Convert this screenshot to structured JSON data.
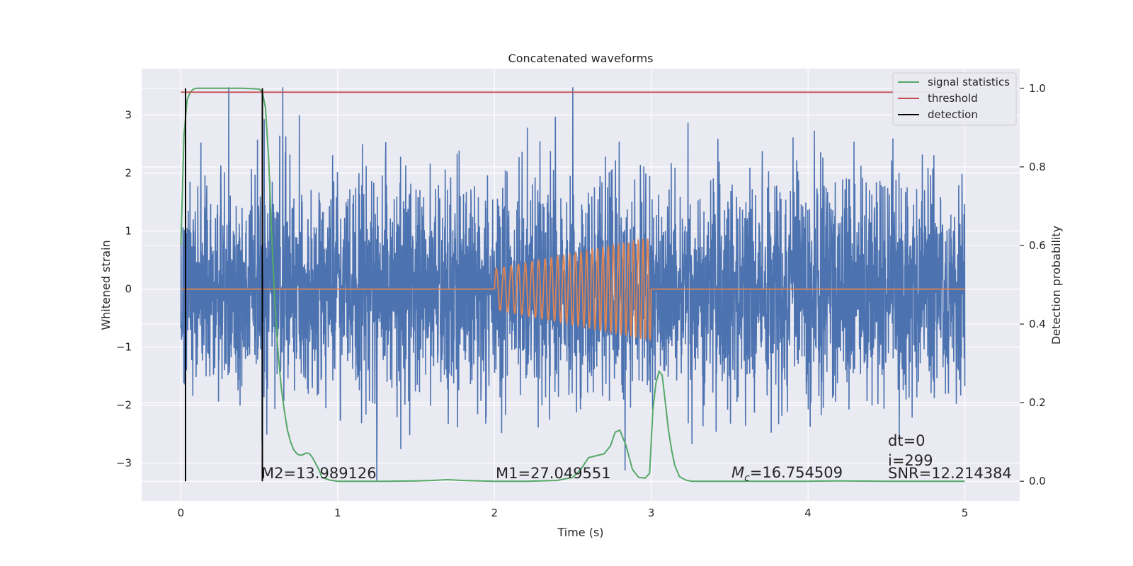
{
  "chart_data": {
    "type": "line",
    "title": "Concatenated waveforms",
    "xlabel": "Time (s)",
    "ylabel_left": "Whitened strain",
    "ylabel_right": "Detection probability",
    "xlim": [
      -0.25,
      5.35
    ],
    "ylim_left": [
      -3.65,
      3.8
    ],
    "ylim_right": [
      -0.05,
      1.05
    ],
    "xticks": [
      0,
      1,
      2,
      3,
      4,
      5
    ],
    "xtick_labels": [
      "0",
      "1",
      "2",
      "3",
      "4",
      "5"
    ],
    "yticks_left": [
      -3,
      -2,
      -1,
      0,
      1,
      2,
      3
    ],
    "ytick_labels_left": [
      "−3",
      "−2",
      "−1",
      "0",
      "1",
      "2",
      "3"
    ],
    "yticks_right": [
      0.0,
      0.2,
      0.4,
      0.6,
      0.8,
      1.0
    ],
    "ytick_labels_right": [
      "0.0",
      "0.2",
      "0.4",
      "0.6",
      "0.8",
      "1.0"
    ],
    "grid": true,
    "legend_placement": "upper-right",
    "colors": {
      "noise": "#4c72b0",
      "template": "#dd8452",
      "signal_statistics": "#55a868",
      "threshold": "#c44e52",
      "detection": "#000000",
      "plot_bg": "#eaeaf2",
      "grid": "#ffffff"
    },
    "series": [
      {
        "name": "signal statistics",
        "axis": "right",
        "x": [
          0,
          0.02,
          0.04,
          0.06,
          0.08,
          0.1,
          0.2,
          0.3,
          0.4,
          0.5,
          0.52,
          0.54,
          0.56,
          0.58,
          0.6,
          0.62,
          0.64,
          0.66,
          0.68,
          0.7,
          0.72,
          0.74,
          0.76,
          0.78,
          0.8,
          0.82,
          0.84,
          0.86,
          0.88,
          0.9,
          0.95,
          1.0,
          1.1,
          1.3,
          1.5,
          1.6,
          1.7,
          1.8,
          2.0,
          2.2,
          2.4,
          2.5,
          2.55,
          2.6,
          2.65,
          2.7,
          2.74,
          2.77,
          2.8,
          2.84,
          2.88,
          2.92,
          2.96,
          2.99,
          3.01,
          3.03,
          3.05,
          3.07,
          3.09,
          3.11,
          3.13,
          3.15,
          3.18,
          3.22,
          3.26,
          3.3,
          3.5,
          4.0,
          4.2,
          4.5,
          5.0
        ],
        "y": [
          0.6,
          0.88,
          0.97,
          0.99,
          0.998,
          1.0,
          1.0,
          1.0,
          1.0,
          0.998,
          0.99,
          0.95,
          0.82,
          0.62,
          0.45,
          0.33,
          0.24,
          0.18,
          0.13,
          0.1,
          0.08,
          0.07,
          0.066,
          0.068,
          0.072,
          0.07,
          0.06,
          0.045,
          0.03,
          0.01,
          0.003,
          0.0,
          0.0,
          0.0,
          0.001,
          0.002,
          0.004,
          0.002,
          0.0,
          0.0,
          0.002,
          0.01,
          0.03,
          0.06,
          0.065,
          0.07,
          0.09,
          0.125,
          0.13,
          0.09,
          0.03,
          0.01,
          0.008,
          0.02,
          0.18,
          0.25,
          0.28,
          0.27,
          0.2,
          0.13,
          0.08,
          0.04,
          0.012,
          0.003,
          0.0,
          0.0,
          0.0,
          0.0,
          0.001,
          0.0,
          0.0
        ]
      },
      {
        "name": "threshold",
        "axis": "right",
        "x": [
          0,
          5
        ],
        "y": [
          0.99,
          0.99
        ]
      },
      {
        "name": "detection",
        "axis": "right",
        "x": [
          0.03,
          0.52
        ],
        "y_range": [
          0.0,
          1.0
        ]
      },
      {
        "name": "",
        "axis": "left",
        "description_kind": "whitened noise strain sampled over 0–5 s",
        "x_range": [
          0,
          5
        ],
        "amplitude_std": 0.95,
        "max_peak": 3.48,
        "min_peak": -3.3
      },
      {
        "name": "",
        "axis": "left",
        "description_kind": "chirp template",
        "x_range": [
          2.0,
          3.0
        ],
        "amp_start": 0.35,
        "amp_end": 0.88,
        "cycles": 27
      }
    ],
    "legend": [
      "signal statistics",
      "threshold",
      "detection"
    ],
    "annotations": {
      "m2": "M2=13.989126",
      "m1": "M1=27.049551",
      "mc_symbol": "M",
      "mc_sub": "c",
      "mc_value": "=16.754509",
      "dt": "dt=0",
      "i": "i=299",
      "snr": "SNR=12.214384"
    }
  }
}
